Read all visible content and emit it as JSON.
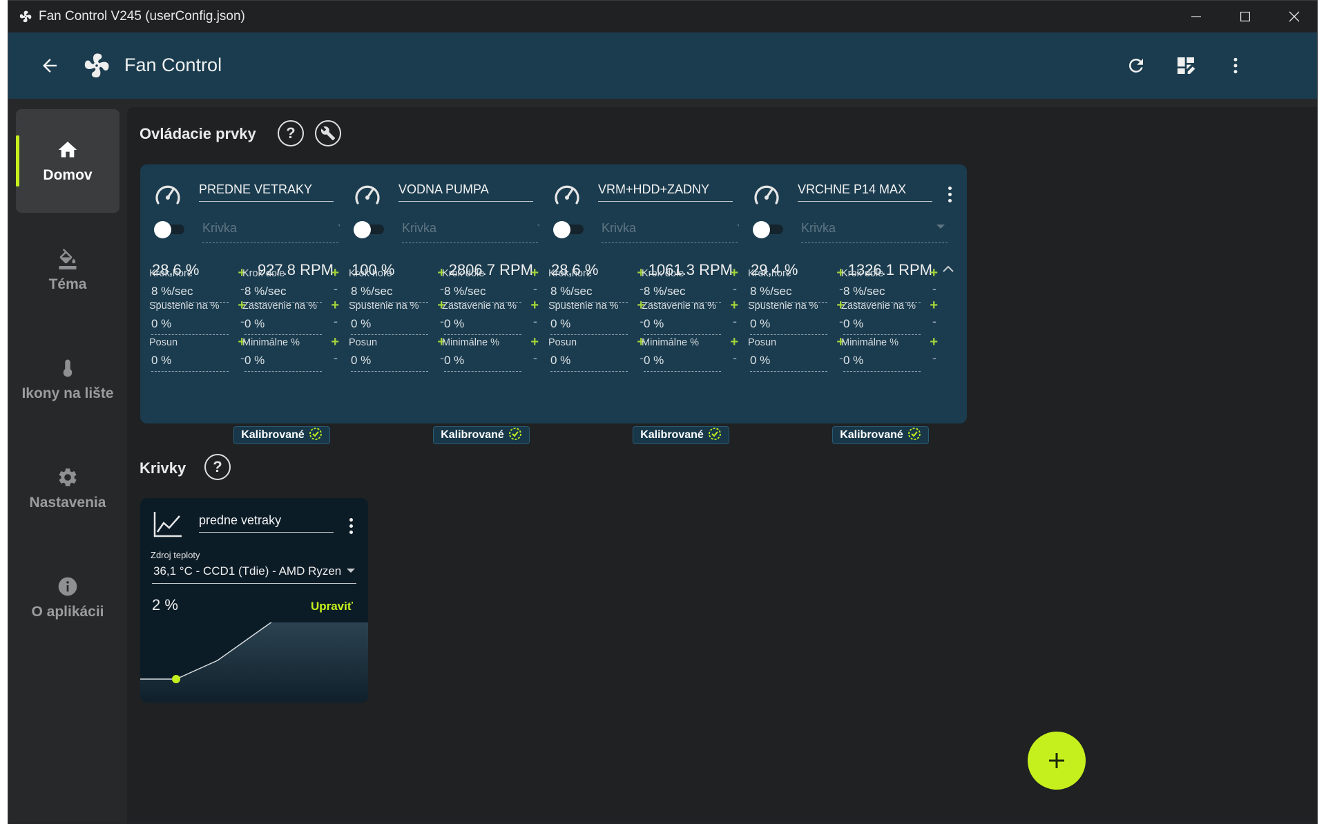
{
  "window": {
    "title": "Fan Control V245 (userConfig.json)"
  },
  "appbar": {
    "title": "Fan Control"
  },
  "nav": {
    "items": [
      {
        "label": "Domov",
        "icon": "home-icon",
        "selected": true
      },
      {
        "label": "Téma",
        "icon": "paint-bucket-icon",
        "selected": false
      },
      {
        "label": "Ikony na lište",
        "icon": "thermometer-icon",
        "selected": false
      },
      {
        "label": "Nastavenia",
        "icon": "gear-icon",
        "selected": false
      },
      {
        "label": "O aplikácii",
        "icon": "info-icon",
        "selected": false
      }
    ]
  },
  "controls": {
    "title": "Ovládacie prvky",
    "help": "?",
    "calibrated_label": "Kalibrované",
    "param_labels": {
      "step_up": "Krok hore",
      "step_down": "Krok dole",
      "start": "Spustenie na %",
      "stop": "Zastavenie na %",
      "offset": "Posun",
      "minimum": "Minimálne %"
    },
    "plus": "+",
    "minus": "-",
    "curve_placeholder": "Krivka",
    "cards": [
      {
        "name": "PREDNE VETRAKY",
        "percent": "28,6 %",
        "rpm": "927.8 RPM",
        "step_up": "8 %/sec",
        "step_down": "8 %/sec",
        "start": "0 %",
        "stop": "0 %",
        "offset": "0 %",
        "minimum": "0 %"
      },
      {
        "name": "VODNA PUMPA",
        "percent": "100 %",
        "rpm": "2806.7 RPM",
        "step_up": "8 %/sec",
        "step_down": "8 %/sec",
        "start": "0 %",
        "stop": "0 %",
        "offset": "0 %",
        "minimum": "0 %"
      },
      {
        "name": "VRM+HDD+ZADNY",
        "percent": "28,6 %",
        "rpm": "1061.3 RPM",
        "step_up": "8 %/sec",
        "step_down": "8 %/sec",
        "start": "0 %",
        "stop": "0 %",
        "offset": "0 %",
        "minimum": "0 %"
      },
      {
        "name": "VRCHNE P14 MAX",
        "percent": "29,4 %",
        "rpm": "1326.1 RPM",
        "step_up": "8 %/sec",
        "step_down": "8 %/sec",
        "start": "0 %",
        "stop": "0 %",
        "offset": "0 %",
        "minimum": "0 %"
      }
    ]
  },
  "curves": {
    "title": "Krivky",
    "help": "?",
    "cards": [
      {
        "name": "predne vetraky",
        "source_label": "Zdroj teploty",
        "source": "36,1 °C - CCD1 (Tdie) - AMD Ryzen",
        "percent": "2 %",
        "edit_label": "Upraviť"
      }
    ]
  },
  "fab": {
    "label": "+"
  },
  "colors": {
    "accent": "#c6f01d",
    "appbar": "#1b3c4f",
    "card": "#1b3c4f",
    "background": "#1f2123"
  }
}
